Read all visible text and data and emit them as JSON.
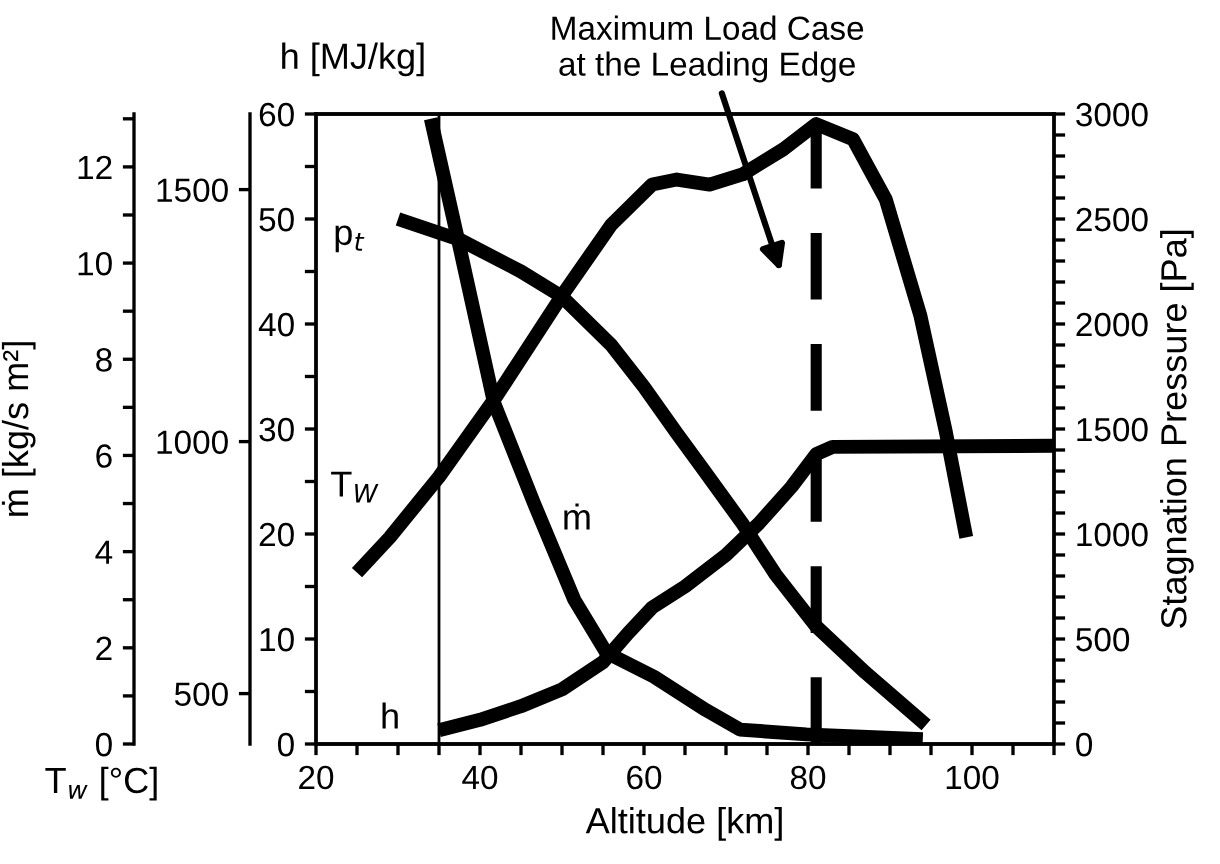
{
  "chart_data": [
    {
      "type": "line",
      "xlabel": "Altitude [km]",
      "ylabel": "h [MJ/kg]",
      "y2label": "Stagnation Pressure [Pa]",
      "y3label": "T$_{w}$ [°C]",
      "xlim": [
        20,
        110
      ],
      "xticks": [
        20,
        {
          "value": 25,
          "label": null
        },
        {
          "value": 30,
          "label": null
        },
        {
          "value": 35,
          "label": null
        },
        40,
        {
          "value": 45,
          "label": null
        },
        {
          "value": 50,
          "label": null
        },
        {
          "value": 55,
          "label": null
        },
        60,
        {
          "value": 65,
          "label": null
        },
        {
          "value": 70,
          "label": null
        },
        {
          "value": 75,
          "label": null
        },
        80,
        {
          "value": 85,
          "label": null
        },
        {
          "value": 90,
          "label": null
        },
        {
          "value": 95,
          "label": null
        },
        100,
        {
          "value": 105,
          "label": null
        },
        {
          "value": 110,
          "label": null
        }
      ],
      "ylim": [
        0,
        60
      ],
      "yticks": [
        0,
        {
          "value": 5,
          "label": null
        },
        10,
        {
          "value": 15,
          "label": null
        },
        20,
        {
          "value": 25,
          "label": null
        },
        30,
        {
          "value": 35,
          "label": null
        },
        40,
        {
          "value": 45,
          "label": null
        },
        50,
        {
          "value": 55,
          "label": null
        },
        60
      ],
      "y2lim": [
        0,
        3000
      ],
      "y2ticks": [
        0,
        {
          "value": 100,
          "label": null
        },
        {
          "value": 200,
          "label": null
        },
        {
          "value": 300,
          "label": null
        },
        {
          "value": 400,
          "label": null
        },
        500,
        {
          "value": 600,
          "label": null
        },
        {
          "value": 700,
          "label": null
        },
        {
          "value": 800,
          "label": null
        },
        {
          "value": 900,
          "label": null
        },
        1000,
        {
          "value": 1100,
          "label": null
        },
        {
          "value": 1200,
          "label": null
        },
        {
          "value": 1300,
          "label": null
        },
        {
          "value": 1400,
          "label": null
        },
        1500,
        {
          "value": 1600,
          "label": null
        },
        {
          "value": 1700,
          "label": null
        },
        {
          "value": 1800,
          "label": null
        },
        {
          "value": 1900,
          "label": null
        },
        2000,
        {
          "value": 2100,
          "label": null
        },
        {
          "value": 2200,
          "label": null
        },
        {
          "value": 2300,
          "label": null
        },
        {
          "value": 2400,
          "label": null
        },
        2500,
        {
          "value": 2600,
          "label": null
        },
        {
          "value": 2700,
          "label": null
        },
        {
          "value": 2800,
          "label": null
        },
        {
          "value": 2900,
          "label": null
        },
        3000
      ],
      "y3lim": [
        400,
        1650
      ],
      "y3ticks": [
        500,
        1000,
        1500
      ],
      "series": [
        {
          "name": "p$_{t}$",
          "color": "#000000",
          "axis": "y2",
          "x": [
            30,
            37.6,
            45,
            50,
            56,
            60,
            64,
            67,
            72,
            76,
            81,
            87,
            94.4
          ],
          "values": [
            2500,
            2400,
            2250,
            2130,
            1900,
            1700,
            1480,
            1320,
            1050,
            810,
            560,
            340,
            90
          ]
        },
        {
          "name": "T$_{W}$",
          "color": "#000000",
          "axis": "y3",
          "x": [
            25,
            29,
            35,
            42,
            50,
            56,
            61,
            64,
            68,
            72,
            77,
            81,
            85.5,
            89.5,
            93.7,
            96.8,
            99.3
          ],
          "values": [
            740,
            810,
            930,
            1090,
            1290,
            1430,
            1510,
            1520,
            1510,
            1530,
            1580,
            1630,
            1600,
            1480,
            1250,
            1020,
            810
          ]
        },
        {
          "name": "h",
          "color": "#000000",
          "x": [
            35,
            40,
            45,
            50,
            55,
            58,
            61,
            65,
            70,
            74,
            78,
            81,
            83,
            110
          ],
          "values": [
            1.3,
            2.3,
            3.6,
            5.2,
            7.8,
            10.5,
            13,
            15,
            18,
            21,
            24.5,
            27.6,
            28.3,
            28.4
          ]
        }
      ],
      "ref_lines": [
        {
          "axis": "x",
          "value": 35,
          "color": "#000000",
          "line_style": "solid"
        },
        {
          "axis": "x",
          "value": 81,
          "color": "#000000",
          "line_style": "dashed"
        }
      ],
      "annotations": [
        "Maximum Load Case\nat the Leading Edge"
      ],
      "legend": false,
      "grid": false
    },
    {
      "type": "line",
      "ylabel": "ṁ [kg/s m²]",
      "xlim": [
        20,
        110
      ],
      "ylim": [
        0,
        13.1
      ],
      "yticks": [
        0,
        {
          "value": 1,
          "label": null
        },
        2,
        {
          "value": 3,
          "label": null
        },
        4,
        {
          "value": 5,
          "label": null
        },
        6,
        {
          "value": 7,
          "label": null
        },
        8,
        {
          "value": 9,
          "label": null
        },
        10,
        {
          "value": 11,
          "label": null
        },
        12,
        {
          "value": 13,
          "label": null
        }
      ],
      "tick_labels": "y",
      "series": [
        {
          "name": "ṁ",
          "color": "#000000",
          "x": [
            34,
            37.3,
            41.7,
            46.6,
            51.5,
            55.4,
            61.2,
            67.6,
            71.7,
            79.8,
            94
          ],
          "values": [
            13.0,
            10.5,
            7.1,
            5.0,
            3.0,
            1.9,
            1.4,
            0.7,
            0.3,
            0.2,
            0.1
          ]
        }
      ]
    }
  ]
}
